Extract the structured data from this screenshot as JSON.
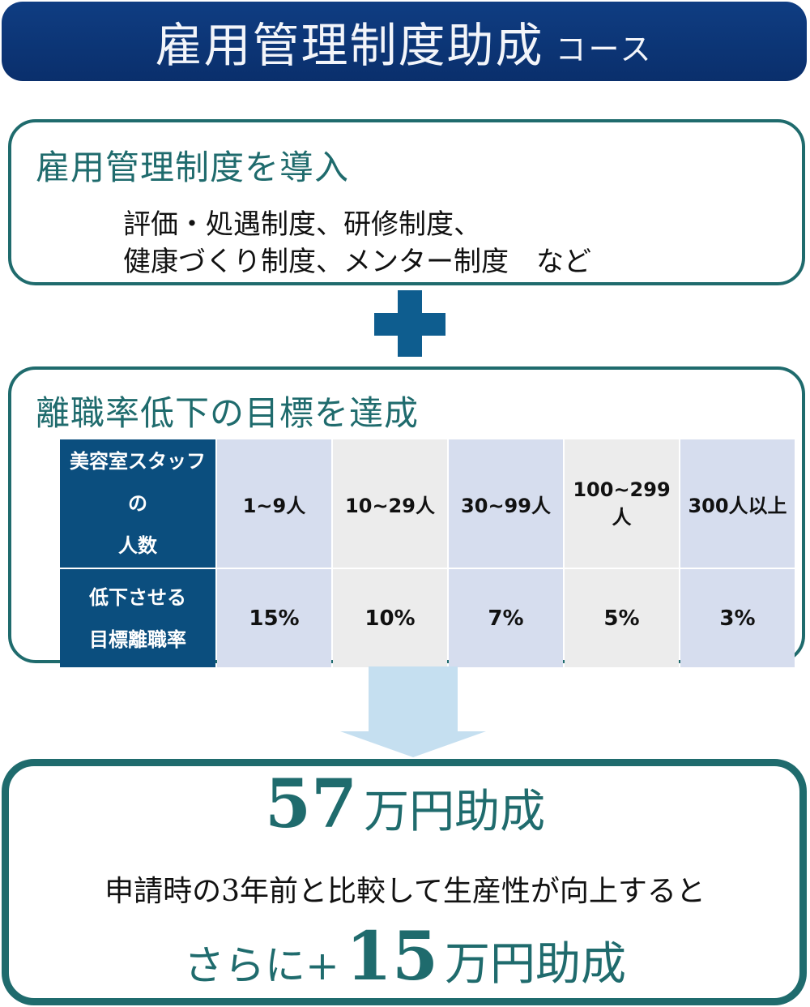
{
  "banner": {
    "title": "雇用管理制度助成",
    "suffix": "コース"
  },
  "section1": {
    "heading": "雇用管理制度を導入",
    "line1": "評価・処遇制度、研修制度、",
    "line2": "健康づくり制度、メンター制度　など"
  },
  "section2": {
    "heading": "離職率低下の目標を達成",
    "table": {
      "row1_header_line1": "美容室スタッフの",
      "row1_header_line2": "人数",
      "row2_header_line1": "低下させる",
      "row2_header_line2": "目標離職率",
      "staff": [
        "1~9人",
        "10~29人",
        "30~99人",
        "100~299人",
        "300人以上"
      ],
      "rates": [
        "15%",
        "10%",
        "7%",
        "5%",
        "3%"
      ]
    }
  },
  "result": {
    "amount": "57",
    "amount_unit": "万円助成",
    "condition": "申請時の3年前と比較して生産性が向上すると",
    "bonus_prefix": "さらに+",
    "bonus_amount": "15",
    "bonus_unit": "万円助成"
  },
  "colors": {
    "banner": "#0f3d82",
    "teal": "#1f6b6d",
    "plus": "#0e5d8f",
    "arrow": "#c5dff0",
    "table_header": "#0b4e7e"
  }
}
